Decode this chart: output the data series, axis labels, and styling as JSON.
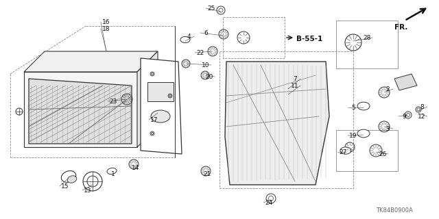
{
  "bg_color": "#ffffff",
  "part_number_stamp": "TK84B0900A",
  "fr_label": "FR.",
  "b55_label": "B-55-1",
  "figsize": [
    6.4,
    3.2
  ],
  "dpi": 100,
  "line_color": "#333333",
  "label_color": "#111111"
}
